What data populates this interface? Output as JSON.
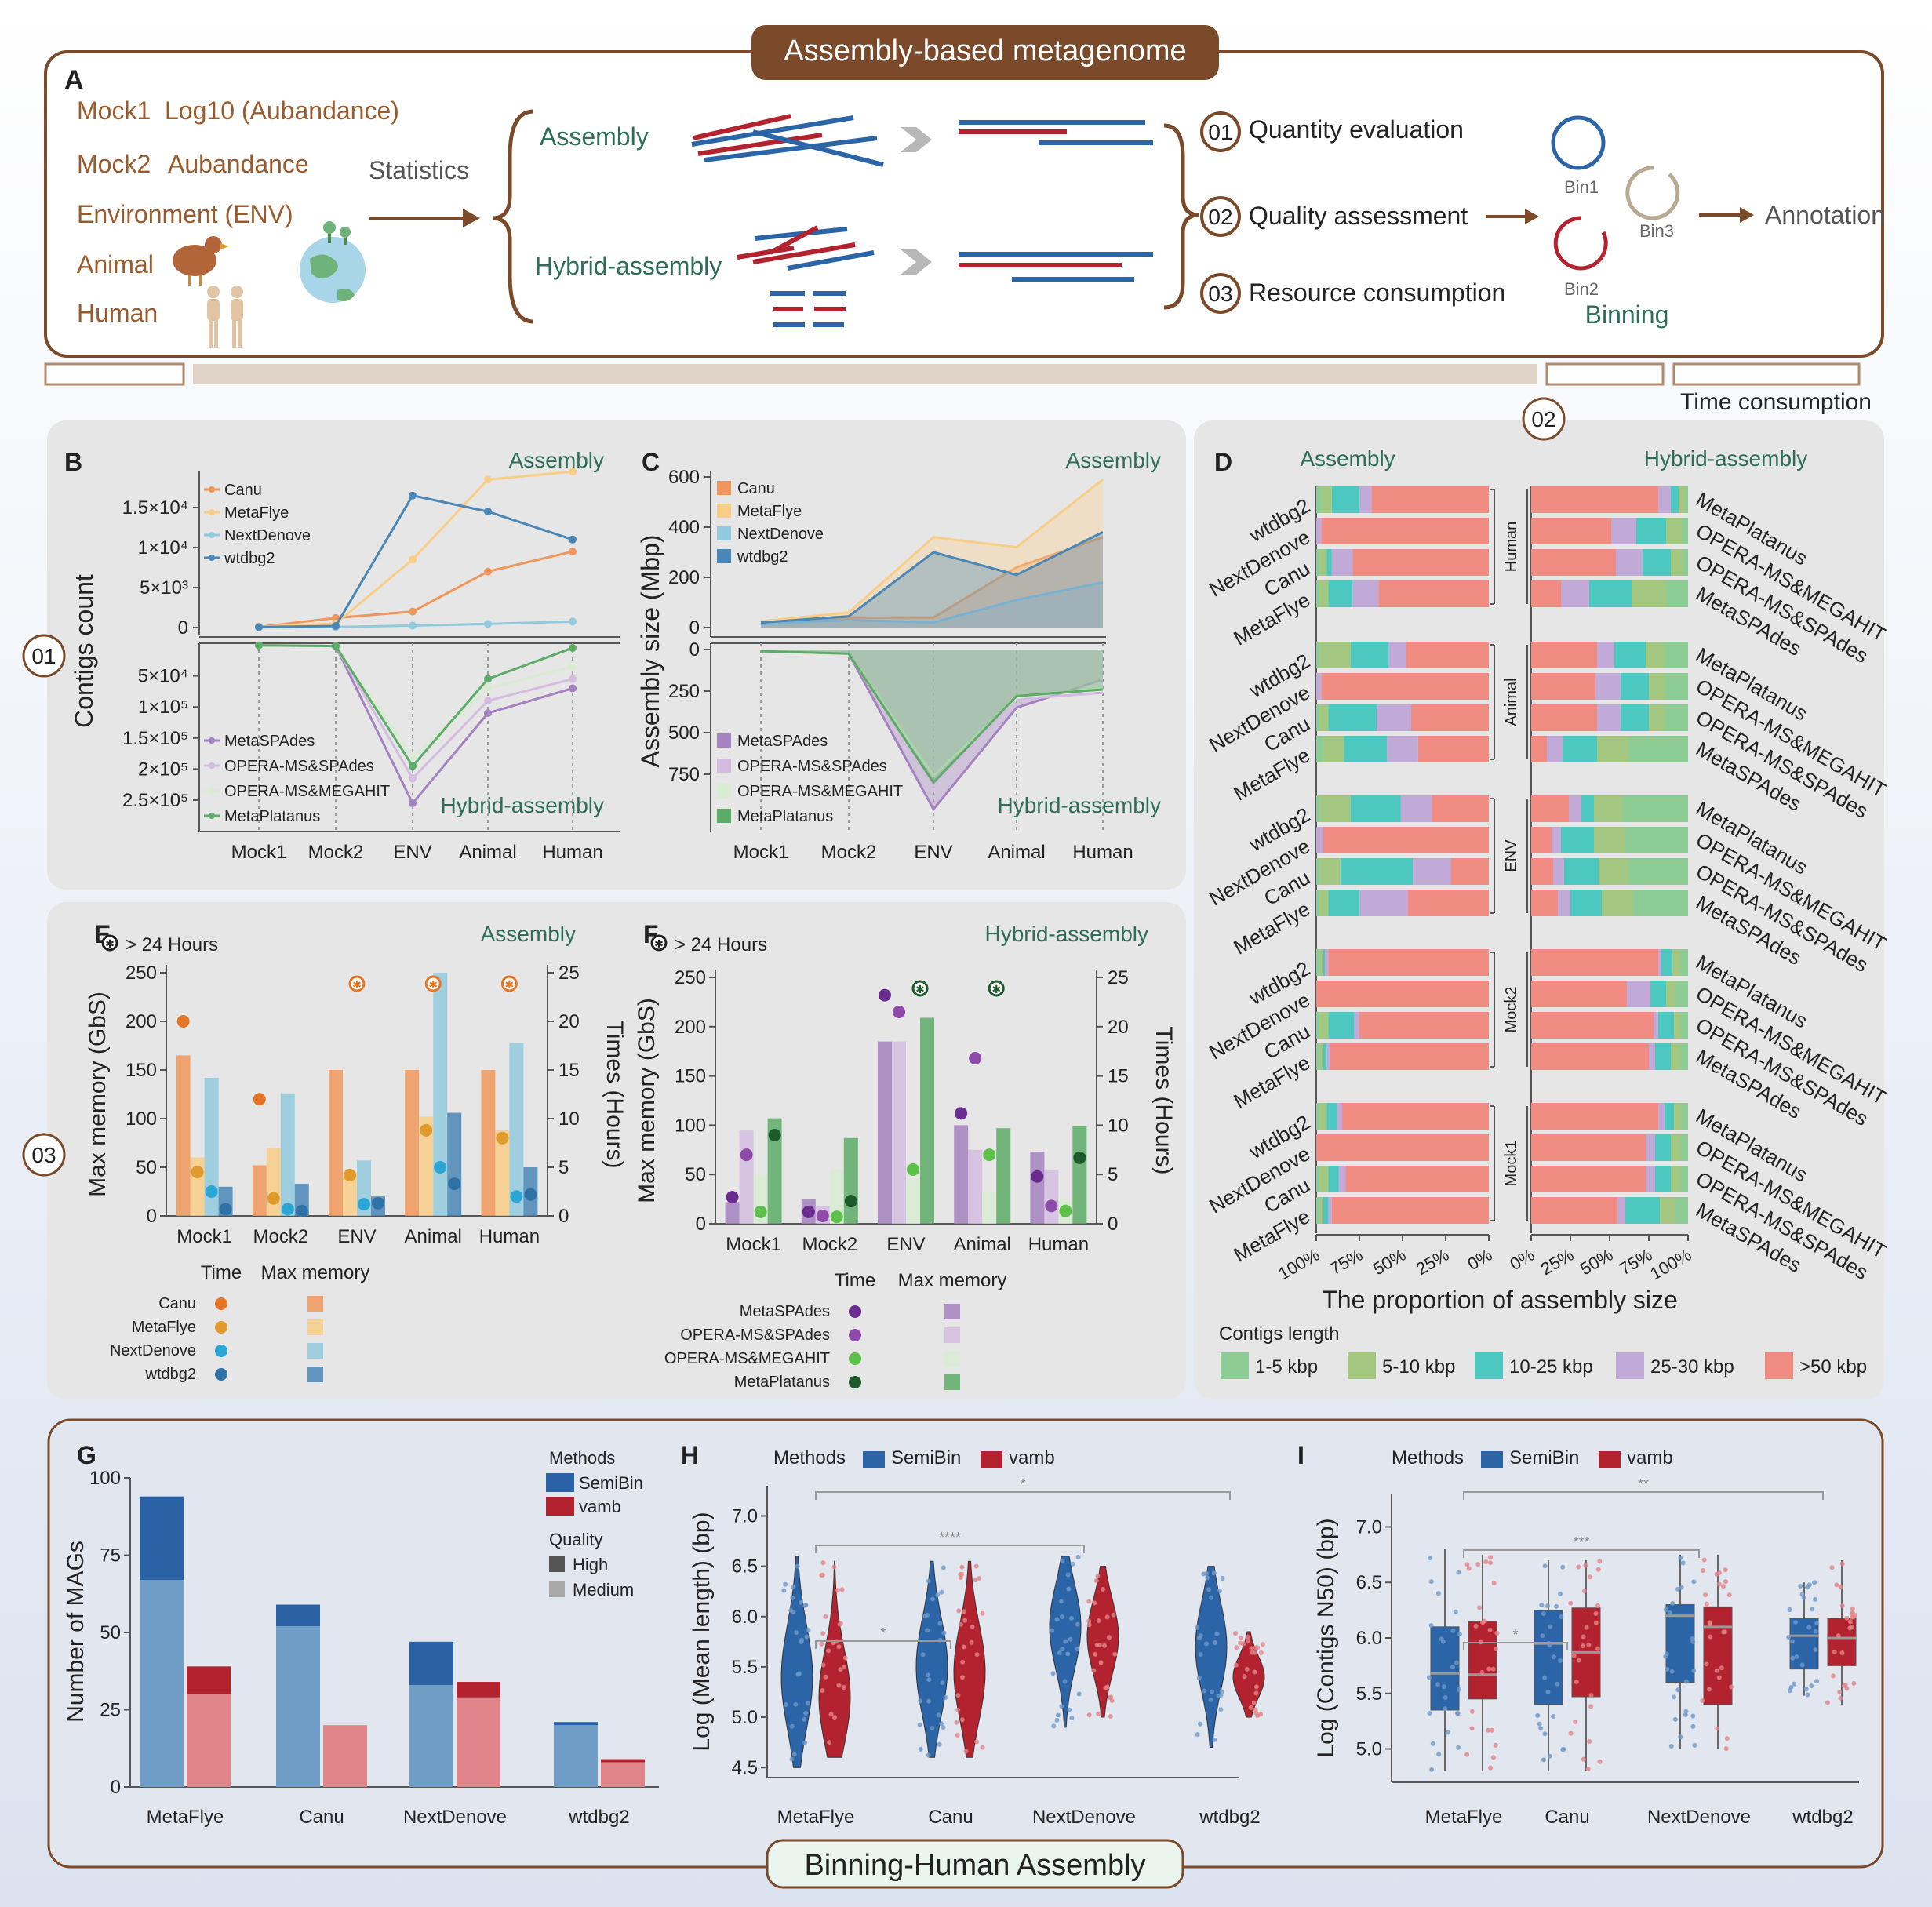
{
  "header": {
    "title": "Assembly-based metagenome",
    "panel_letter": "A",
    "datasets": [
      "Mock1",
      "Mock2",
      "Environment (ENV)",
      "Animal",
      "Human"
    ],
    "metrics": [
      "Log10 (Aubandance)",
      "Aubandance"
    ],
    "statistics_label": "Statistics",
    "assembly_label": "Assembly",
    "hybrid_label": "Hybrid-assembly",
    "steps": [
      {
        "num": "01",
        "text": "Quantity evaluation"
      },
      {
        "num": "02",
        "text": "Quality assessment"
      },
      {
        "num": "03",
        "text": "Resource consumption"
      }
    ],
    "bins": [
      "Bin1",
      "Bin2",
      "Bin3"
    ],
    "binning_label": "Binning",
    "annotation_label": "Annotation",
    "time_consumption": "Time consumption",
    "side_marker_01": "01",
    "side_marker_02": "02",
    "side_marker_03": "03"
  },
  "colors": {
    "canu": "#f0965a",
    "metaflye": "#f8cd86",
    "nextdenove": "#92c9dd",
    "wtdbg2": "#4a86b6",
    "metaspades": "#a481bf",
    "opera_spades": "#d4bce0",
    "opera_megahit": "#d8ecd2",
    "metaplatanus": "#5cab66",
    "brown": "#7a4a2a",
    "teal_text": "#2e6e58",
    "len_1_5": "#8dcc94",
    "len_5_10": "#a3c680",
    "len_10_25": "#4dc8c0",
    "len_25_30": "#c2aad8",
    "len_50": "#f08c82",
    "semibin": "#2b64a7",
    "vamb": "#b3232f"
  },
  "chart_data": [
    {
      "panel": "B",
      "type": "line",
      "ylabel": "Contigs count",
      "categories": [
        "Mock1",
        "Mock2",
        "ENV",
        "Animal",
        "Human"
      ],
      "top_tag": "Assembly",
      "bottom_tag": "Hybrid-assembly",
      "top_ticks": [
        "0",
        "5×10³",
        "1×10⁴",
        "1.5×10⁴"
      ],
      "bottom_ticks": [
        "5×10⁴",
        "1×10⁵",
        "1.5×10⁵",
        "2×10⁵",
        "2.5×10⁵"
      ],
      "top_series": [
        {
          "name": "Canu",
          "values": [
            80,
            1200,
            2000,
            7000,
            9500
          ]
        },
        {
          "name": "MetaFlye",
          "values": [
            80,
            500,
            8500,
            18500,
            19500
          ]
        },
        {
          "name": "NextDenove",
          "values": [
            30,
            60,
            250,
            450,
            750
          ]
        },
        {
          "name": "wtdbg2",
          "values": [
            60,
            200,
            16500,
            14500,
            11000
          ]
        }
      ],
      "bottom_series": [
        {
          "name": "MetaSPAdes",
          "values": [
            900,
            2000,
            255000,
            110000,
            70000
          ]
        },
        {
          "name": "OPERA-MS&SPAdes",
          "values": [
            900,
            2000,
            215000,
            90000,
            55000
          ]
        },
        {
          "name": "OPERA-MS&MEGAHIT",
          "values": [
            900,
            2000,
            180000,
            70000,
            35000
          ]
        },
        {
          "name": "MetaPlatanus",
          "values": [
            900,
            2000,
            195000,
            55000,
            5000
          ]
        }
      ]
    },
    {
      "panel": "C",
      "type": "area",
      "ylabel": "Assembly size (Mbp)",
      "categories": [
        "Mock1",
        "Mock2",
        "ENV",
        "Animal",
        "Human"
      ],
      "top_tag": "Assembly",
      "bottom_tag": "Hybrid-assembly",
      "top_ticks": [
        "0",
        "200",
        "400",
        "600"
      ],
      "bottom_ticks": [
        "0",
        "250",
        "500",
        "750"
      ],
      "top_series": [
        {
          "name": "Canu",
          "values": [
            20,
            40,
            40,
            240,
            360
          ]
        },
        {
          "name": "MetaFlye",
          "values": [
            25,
            60,
            360,
            320,
            590
          ]
        },
        {
          "name": "NextDenove",
          "values": [
            15,
            30,
            20,
            110,
            180
          ]
        },
        {
          "name": "wtdbg2",
          "values": [
            20,
            45,
            300,
            210,
            380
          ]
        }
      ],
      "bottom_series": [
        {
          "name": "MetaSPAdes",
          "values": [
            10,
            25,
            960,
            350,
            180
          ]
        },
        {
          "name": "OPERA-MS&SPAdes",
          "values": [
            10,
            25,
            820,
            300,
            260
          ]
        },
        {
          "name": "OPERA-MS&MEGAHIT",
          "values": [
            10,
            25,
            760,
            290,
            230
          ]
        },
        {
          "name": "MetaPlatanus",
          "values": [
            10,
            25,
            800,
            280,
            240
          ]
        }
      ]
    },
    {
      "panel": "D",
      "type": "bar",
      "xlabel": "The proportion of assembly size",
      "left_title": "Assembly",
      "right_title": "Hybrid-assembly",
      "left_ticks": [
        "100%",
        "75%",
        "50%",
        "25%",
        "0%"
      ],
      "right_ticks": [
        "0%",
        "25%",
        "50%",
        "75%",
        "100%"
      ],
      "legend_title": "Contigs length",
      "classes": [
        "1-5 kbp",
        "5-10 kbp",
        "10-25 kbp",
        "25-30 kbp",
        ">50 kbp"
      ],
      "groups": [
        "Human",
        "Animal",
        "ENV",
        "Mock2",
        "Mock1"
      ],
      "assembly_tools": [
        "wtdbg2",
        "NextDenove",
        "Canu",
        "MetaFlye"
      ],
      "hybrid_tools": [
        "MetaPlatanus",
        "OPERA-MS&MEGAHIT",
        "OPERA-MS&SPAdes",
        "MetaSPAdes"
      ],
      "assembly": [
        [
          [
            3,
            6,
            16,
            7,
            68
          ],
          [
            0,
            0,
            0,
            3,
            97
          ],
          [
            2,
            4,
            3,
            12,
            79
          ],
          [
            2,
            5,
            14,
            15,
            64
          ]
        ],
        [
          [
            2,
            18,
            22,
            10,
            48
          ],
          [
            0,
            0,
            0,
            3,
            97
          ],
          [
            2,
            5,
            28,
            20,
            45
          ],
          [
            4,
            12,
            25,
            18,
            41
          ]
        ],
        [
          [
            2,
            18,
            29,
            18,
            33
          ],
          [
            0,
            0,
            0,
            4,
            96
          ],
          [
            2,
            12,
            42,
            22,
            22
          ],
          [
            2,
            5,
            18,
            28,
            47
          ]
        ],
        [
          [
            2,
            2,
            1,
            2,
            93
          ],
          [
            0,
            0,
            0,
            0,
            100
          ],
          [
            2,
            5,
            15,
            3,
            75
          ],
          [
            2,
            2,
            2,
            2,
            92
          ]
        ],
        [
          [
            2,
            4,
            6,
            3,
            85
          ],
          [
            0,
            0,
            0,
            0,
            100
          ],
          [
            2,
            5,
            6,
            4,
            83
          ],
          [
            2,
            2,
            3,
            2,
            91
          ]
        ]
      ],
      "hybrid": [
        [
          [
            2,
            4,
            5,
            8,
            81
          ],
          [
            4,
            10,
            19,
            16,
            51
          ],
          [
            3,
            8,
            18,
            17,
            54
          ],
          [
            14,
            22,
            27,
            18,
            19
          ]
        ],
        [
          [
            15,
            12,
            20,
            11,
            42
          ],
          [
            15,
            10,
            18,
            16,
            41
          ],
          [
            15,
            10,
            18,
            15,
            42
          ],
          [
            38,
            20,
            22,
            10,
            10
          ]
        ],
        [
          [
            42,
            18,
            8,
            8,
            24
          ],
          [
            40,
            20,
            21,
            6,
            13
          ],
          [
            38,
            19,
            22,
            7,
            14
          ],
          [
            35,
            20,
            20,
            8,
            17
          ]
        ],
        [
          [
            5,
            5,
            7,
            2,
            81
          ],
          [
            8,
            6,
            10,
            15,
            61
          ],
          [
            5,
            4,
            10,
            3,
            78
          ],
          [
            5,
            6,
            10,
            4,
            75
          ]
        ],
        [
          [
            4,
            5,
            6,
            4,
            81
          ],
          [
            5,
            6,
            10,
            6,
            73
          ],
          [
            5,
            6,
            10,
            6,
            73
          ],
          [
            8,
            10,
            22,
            5,
            55
          ]
        ]
      ]
    },
    {
      "panel": "E",
      "type": "bar",
      "title": "Assembly",
      "star_note": "> 24 Hours",
      "ylabel_left": "Max memory (GbS)",
      "ylabel_right": "Times (Hours)",
      "categories": [
        "Mock1",
        "Mock2",
        "ENV",
        "Animal",
        "Human"
      ],
      "left_ticks": [
        "0",
        "50",
        "100",
        "150",
        "200",
        "250"
      ],
      "right_ticks": [
        "0",
        "5",
        "10",
        "15",
        "20",
        "25"
      ],
      "legend_header": [
        "Time",
        "Max memory"
      ],
      "series": [
        {
          "name": "Canu",
          "memory": [
            165,
            52,
            150,
            150,
            150
          ],
          "time": [
            20,
            12,
            null,
            null,
            null
          ]
        },
        {
          "name": "MetaFlye",
          "memory": [
            60,
            70,
            45,
            102,
            88
          ],
          "time": [
            4.5,
            1.8,
            4.2,
            8.8,
            8.0
          ]
        },
        {
          "name": "NextDenove",
          "memory": [
            142,
            126,
            57,
            250,
            178
          ],
          "time": [
            2.5,
            0.7,
            1.2,
            5.0,
            2.0
          ]
        },
        {
          "name": "wtdbg2",
          "memory": [
            30,
            33,
            20,
            106,
            50
          ],
          "time": [
            0.7,
            0.5,
            1.3,
            3.3,
            2.2
          ]
        }
      ],
      "over_24h": [
        false,
        false,
        true,
        true,
        true
      ]
    },
    {
      "panel": "F",
      "type": "bar",
      "title": "Hybrid-assembly",
      "star_note": "> 24 Hours",
      "ylabel_left": "Max memory (GbS)",
      "ylabel_right": "Times (Hours)",
      "categories": [
        "Mock1",
        "Mock2",
        "ENV",
        "Animal",
        "Human"
      ],
      "left_ticks": [
        "0",
        "50",
        "100",
        "150",
        "200",
        "250"
      ],
      "right_ticks": [
        "0",
        "5",
        "10",
        "15",
        "20",
        "25"
      ],
      "legend_header": [
        "Time",
        "Max memory"
      ],
      "series": [
        {
          "name": "MetaSPAdes",
          "memory": [
            22,
            25,
            185,
            100,
            73
          ],
          "time": [
            2.7,
            1.2,
            23.2,
            11.2,
            4.8
          ]
        },
        {
          "name": "OPERA-MS&SPAdes",
          "memory": [
            95,
            18,
            185,
            75,
            55
          ],
          "time": [
            7.0,
            0.8,
            21.5,
            16.8,
            1.8
          ]
        },
        {
          "name": "OPERA-MS&MEGAHIT",
          "memory": [
            50,
            55,
            45,
            32,
            25
          ],
          "time": [
            1.2,
            0.7,
            5.5,
            7.0,
            1.3
          ]
        },
        {
          "name": "MetaPlatanus",
          "memory": [
            107,
            87,
            209,
            97,
            99
          ],
          "time": [
            9.0,
            2.3,
            null,
            null,
            6.7
          ]
        }
      ],
      "over_24h": [
        false,
        false,
        true,
        true,
        false
      ]
    },
    {
      "panel": "G",
      "type": "bar",
      "ylabel": "Number of MAGs",
      "categories": [
        "MetaFlye",
        "Canu",
        "NextDenove",
        "wtdbg2"
      ],
      "ylim": [
        0,
        100
      ],
      "ticks": [
        "0",
        "25",
        "50",
        "75",
        "100"
      ],
      "legend": {
        "methods_title": "Methods",
        "methods": [
          "SemiBin",
          "vamb"
        ],
        "quality_title": "Quality",
        "quality": [
          "High",
          "Medium"
        ]
      },
      "series": [
        {
          "name": "SemiBin",
          "medium": [
            67,
            52,
            33,
            20
          ],
          "high": [
            27,
            7,
            14,
            1
          ]
        },
        {
          "name": "vamb",
          "medium": [
            30,
            20,
            29,
            8
          ],
          "high": [
            9,
            0,
            5,
            1
          ]
        }
      ]
    },
    {
      "panel": "H",
      "type": "scatter",
      "ylabel": "Log (Mean length) (bp)",
      "categories": [
        "MetaFlye",
        "Canu",
        "NextDenove",
        "wtdbg2"
      ],
      "ylim": [
        4.4,
        7.3
      ],
      "ticks": [
        "4.5",
        "5.0",
        "5.5",
        "6.0",
        "6.5",
        "7.0"
      ],
      "legend_title": "Methods",
      "legend": [
        "SemiBin",
        "vamb"
      ],
      "significance": [
        {
          "from": "MetaFlye",
          "to": "Canu",
          "label": "*"
        },
        {
          "from": "MetaFlye",
          "to": "NextDenove",
          "label": "****"
        },
        {
          "from": "MetaFlye",
          "to": "wtdbg2",
          "label": "*"
        }
      ],
      "series": [
        {
          "name": "SemiBin",
          "min": [
            4.5,
            4.6,
            4.9,
            4.7
          ],
          "max": [
            6.6,
            6.55,
            6.6,
            6.5
          ],
          "median": [
            5.4,
            5.5,
            5.9,
            5.7
          ]
        },
        {
          "name": "vamb",
          "min": [
            4.6,
            4.6,
            5.0,
            5.0
          ],
          "max": [
            6.55,
            6.55,
            6.5,
            5.85
          ],
          "median": [
            5.2,
            5.45,
            5.8,
            5.4
          ]
        }
      ]
    },
    {
      "panel": "I",
      "type": "scatter",
      "ylabel": "Log (Contigs N50) (bp)",
      "categories": [
        "MetaFlye",
        "Canu",
        "NextDenove",
        "wtdbg2"
      ],
      "ylim": [
        4.7,
        7.3
      ],
      "ticks": [
        "5.0",
        "5.5",
        "6.0",
        "6.5",
        "7.0"
      ],
      "legend_title": "Methods",
      "legend": [
        "SemiBin",
        "vamb"
      ],
      "significance": [
        {
          "from": "MetaFlye",
          "to": "Canu",
          "label": "*"
        },
        {
          "from": "MetaFlye",
          "to": "NextDenove",
          "label": "***"
        },
        {
          "from": "MetaFlye",
          "to": "wtdbg2",
          "label": "**"
        }
      ],
      "series": [
        {
          "name": "SemiBin",
          "q1": [
            5.35,
            5.4,
            5.6,
            5.72
          ],
          "median": [
            5.68,
            5.95,
            6.2,
            6.02
          ],
          "q3": [
            6.1,
            6.25,
            6.3,
            6.18
          ],
          "min": [
            4.8,
            4.8,
            5.0,
            5.48
          ],
          "max": [
            6.8,
            6.7,
            6.75,
            6.5
          ]
        },
        {
          "name": "vamb",
          "q1": [
            5.45,
            5.47,
            5.4,
            5.75
          ],
          "median": [
            5.67,
            5.87,
            6.1,
            6.0
          ],
          "q3": [
            6.15,
            6.27,
            6.28,
            6.18
          ],
          "min": [
            4.8,
            4.8,
            5.0,
            5.4
          ],
          "max": [
            6.75,
            6.7,
            6.75,
            6.7
          ]
        }
      ]
    }
  ],
  "footer": {
    "title": "Binning-Human Assembly"
  }
}
